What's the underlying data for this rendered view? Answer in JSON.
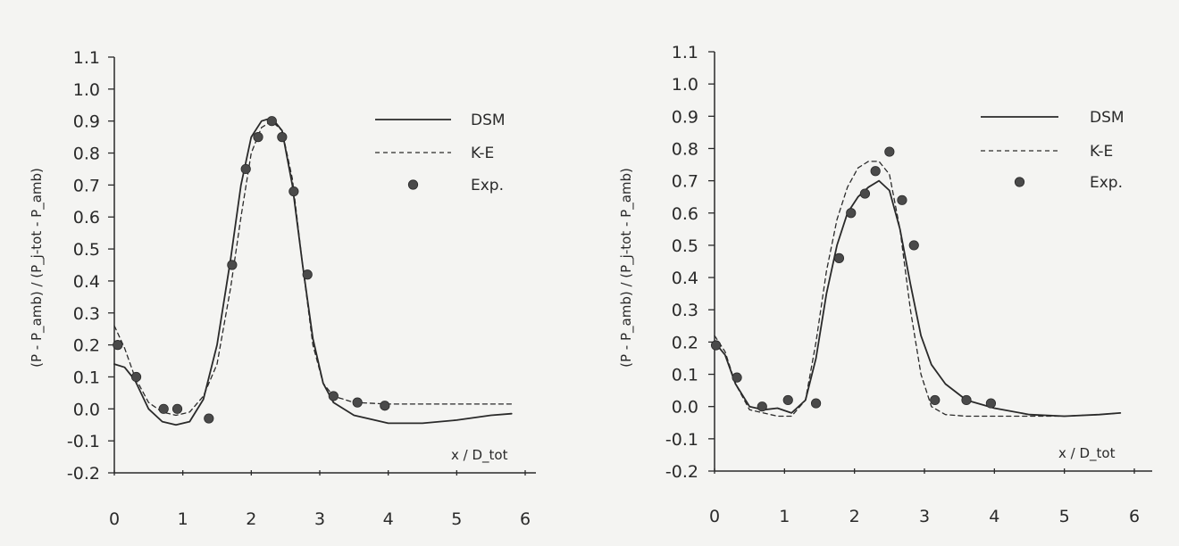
{
  "chart_data": [
    {
      "type": "line",
      "xlabel": "x / D_tot",
      "ylabel": "(P - P_amb) / (P_j-tot - P_amb)",
      "xlim": [
        0,
        6
      ],
      "ylim": [
        -0.2,
        1.1
      ],
      "x_ticks": [
        "0",
        "1",
        "2",
        "3",
        "4",
        "5",
        "6"
      ],
      "y_ticks": [
        "-0.2",
        "-0.1",
        "0.0",
        "0.1",
        "0.2",
        "0.3",
        "0.4",
        "0.5",
        "0.6",
        "0.7",
        "0.8",
        "0.9",
        "1.0",
        "1.1"
      ],
      "legend": {
        "placement": "top-right"
      },
      "series": [
        {
          "name": "DSM",
          "style": "solid",
          "x": [
            0,
            0.15,
            0.3,
            0.5,
            0.7,
            0.9,
            1.1,
            1.3,
            1.5,
            1.7,
            1.85,
            2.0,
            2.15,
            2.3,
            2.45,
            2.6,
            2.75,
            2.9,
            3.05,
            3.2,
            3.5,
            4.0,
            4.5,
            5.0,
            5.5,
            5.8
          ],
          "y": [
            0.14,
            0.13,
            0.09,
            0.0,
            -0.04,
            -0.05,
            -0.04,
            0.03,
            0.2,
            0.47,
            0.7,
            0.85,
            0.9,
            0.91,
            0.87,
            0.7,
            0.45,
            0.22,
            0.08,
            0.02,
            -0.02,
            -0.045,
            -0.045,
            -0.035,
            -0.02,
            -0.015
          ]
        },
        {
          "name": "K-E",
          "style": "dashed",
          "x": [
            0,
            0.15,
            0.3,
            0.5,
            0.7,
            0.9,
            1.1,
            1.3,
            1.5,
            1.7,
            1.85,
            2.0,
            2.15,
            2.3,
            2.45,
            2.6,
            2.75,
            2.9,
            3.05,
            3.2,
            3.5,
            4.0,
            4.5,
            5.0,
            5.5,
            5.8
          ],
          "y": [
            0.26,
            0.19,
            0.1,
            0.02,
            -0.01,
            -0.02,
            -0.01,
            0.04,
            0.14,
            0.38,
            0.6,
            0.8,
            0.88,
            0.9,
            0.87,
            0.72,
            0.45,
            0.2,
            0.08,
            0.04,
            0.02,
            0.015,
            0.015,
            0.015,
            0.015,
            0.015
          ]
        },
        {
          "name": "Exp.",
          "style": "points",
          "x": [
            0.05,
            0.32,
            0.72,
            0.92,
            1.38,
            1.72,
            1.92,
            2.1,
            2.3,
            2.45,
            2.62,
            2.82,
            3.2,
            3.55,
            3.95
          ],
          "y": [
            0.2,
            0.1,
            0.0,
            0.0,
            -0.03,
            0.45,
            0.75,
            0.85,
            0.9,
            0.85,
            0.68,
            0.42,
            0.04,
            0.02,
            0.01
          ]
        }
      ]
    },
    {
      "type": "line",
      "xlabel": "x / D_tot",
      "ylabel": "(P - P_amb) / (P_j-tot - P_amb)",
      "xlim": [
        0,
        6
      ],
      "ylim": [
        -0.2,
        1.1
      ],
      "x_ticks": [
        "0",
        "1",
        "2",
        "3",
        "4",
        "5",
        "6"
      ],
      "y_ticks": [
        "-0.2",
        "-0.1",
        "0.0",
        "0.1",
        "0.2",
        "0.3",
        "0.4",
        "0.5",
        "0.6",
        "0.7",
        "0.8",
        "0.9",
        "1.0",
        "1.1"
      ],
      "legend": {
        "placement": "top-right"
      },
      "series": [
        {
          "name": "DSM",
          "style": "solid",
          "x": [
            0,
            0.15,
            0.3,
            0.5,
            0.7,
            0.9,
            1.1,
            1.3,
            1.45,
            1.6,
            1.75,
            1.9,
            2.05,
            2.2,
            2.35,
            2.5,
            2.65,
            2.8,
            2.95,
            3.1,
            3.3,
            3.6,
            4.0,
            4.5,
            5.0,
            5.5,
            5.8
          ],
          "y": [
            0.2,
            0.16,
            0.07,
            0.0,
            -0.01,
            -0.005,
            -0.02,
            0.02,
            0.15,
            0.35,
            0.5,
            0.6,
            0.65,
            0.68,
            0.7,
            0.67,
            0.55,
            0.38,
            0.22,
            0.13,
            0.07,
            0.02,
            -0.005,
            -0.025,
            -0.03,
            -0.025,
            -0.02
          ]
        },
        {
          "name": "K-E",
          "style": "dashed",
          "x": [
            0,
            0.15,
            0.3,
            0.5,
            0.7,
            0.9,
            1.1,
            1.3,
            1.45,
            1.6,
            1.75,
            1.9,
            2.05,
            2.2,
            2.35,
            2.5,
            2.65,
            2.8,
            2.95,
            3.1,
            3.3,
            3.6,
            4.0,
            4.5,
            5.0,
            5.5,
            5.8
          ],
          "y": [
            0.22,
            0.17,
            0.07,
            -0.01,
            -0.02,
            -0.03,
            -0.03,
            0.02,
            0.2,
            0.42,
            0.58,
            0.68,
            0.74,
            0.76,
            0.76,
            0.72,
            0.55,
            0.3,
            0.1,
            0.0,
            -0.025,
            -0.03,
            -0.03,
            -0.03,
            -0.03,
            -0.025,
            -0.02
          ]
        },
        {
          "name": "Exp.",
          "style": "points",
          "x": [
            0.02,
            0.32,
            0.68,
            1.05,
            1.45,
            1.78,
            1.95,
            2.15,
            2.3,
            2.5,
            2.68,
            2.85,
            3.15,
            3.6,
            3.95
          ],
          "y": [
            0.19,
            0.09,
            0.0,
            0.02,
            0.01,
            0.46,
            0.6,
            0.66,
            0.73,
            0.79,
            0.64,
            0.5,
            0.02,
            0.02,
            0.01
          ]
        }
      ]
    }
  ]
}
